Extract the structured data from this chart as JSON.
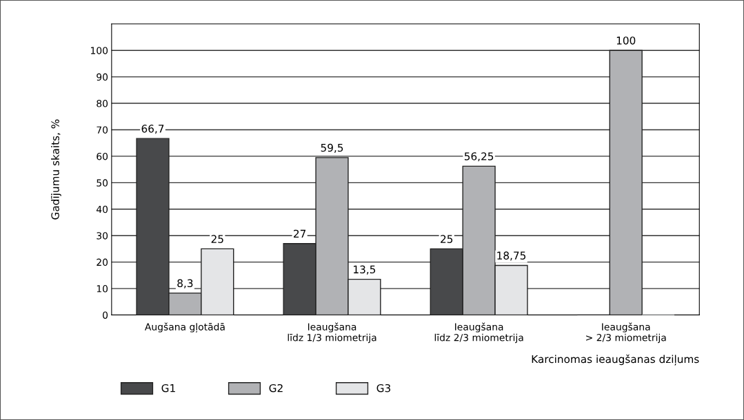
{
  "chart_data": {
    "type": "bar",
    "xlabel": "Karcinomas ieaugšanas dziļums",
    "ylabel": "Gadījumu skaits, %",
    "categories": [
      "Augšana gļotādā",
      "Ieaugšana\nlīdz 1/3 miometrija",
      "Ieaugšana\nlīdz 2/3 miometrija",
      "Ieaugšana\n> 2/3 miometrija"
    ],
    "series": [
      {
        "name": "G1",
        "color": "#48494b",
        "values": [
          66.7,
          27,
          25,
          0
        ],
        "value_labels": [
          "66,7",
          "27",
          "25",
          null
        ]
      },
      {
        "name": "G2",
        "color": "#b1b2b5",
        "values": [
          8.3,
          59.5,
          56.25,
          100
        ],
        "value_labels": [
          "8,3",
          "59,5",
          "56,25",
          "100"
        ]
      },
      {
        "name": "G3",
        "color": "#e4e5e7",
        "values": [
          25,
          13.5,
          18.75,
          0
        ],
        "value_labels": [
          "25",
          "13,5",
          "18,75",
          null
        ]
      }
    ],
    "ylim": [
      0,
      110
    ],
    "yticks": [
      0,
      10,
      20,
      30,
      40,
      50,
      60,
      70,
      80,
      90,
      100
    ],
    "grid": "y",
    "legend": "bottom left"
  }
}
